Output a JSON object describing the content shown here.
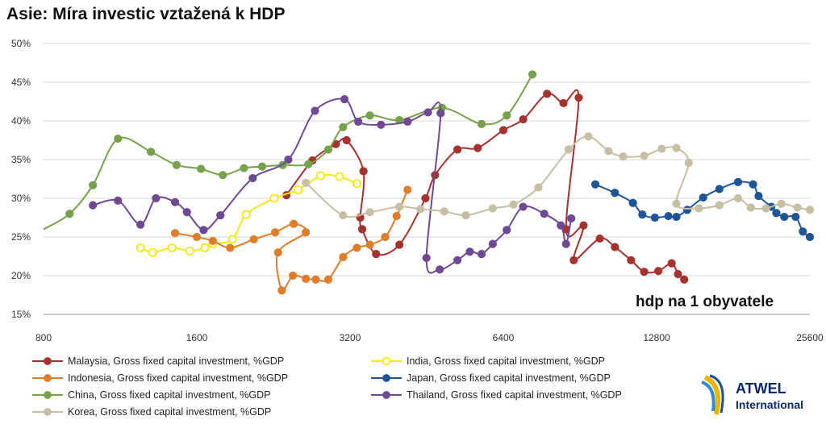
{
  "chart_data": {
    "type": "line",
    "title": "Asie: Míra investic vztažená k HDP",
    "annotation": "hdp na 1 obyvatele",
    "x_scale": "log2",
    "xlim": [
      800,
      25600
    ],
    "ylim": [
      15,
      50
    ],
    "x_ticks": [
      "800",
      "1600",
      "3200",
      "6400",
      "12800",
      "25600"
    ],
    "x_tick_values": [
      800,
      1600,
      3200,
      6400,
      12800,
      25600
    ],
    "y_ticks": [
      "15%",
      "20%",
      "25%",
      "30%",
      "35%",
      "40%",
      "45%",
      "50%"
    ],
    "y_tick_values": [
      15,
      20,
      25,
      30,
      35,
      40,
      45,
      50
    ],
    "grid": "horizontal",
    "legend_position": "bottom",
    "series": [
      {
        "name": "Malaysia, Gross fixed capital investment, %GDP",
        "color": "#a5322f",
        "points": [
          [
            2400,
            30.4
          ],
          [
            2700,
            34.9
          ],
          [
            3000,
            37.0
          ],
          [
            3150,
            37.5
          ],
          [
            3400,
            33.5
          ],
          [
            3350,
            27.5
          ],
          [
            3380,
            26.0
          ],
          [
            3600,
            22.8
          ],
          [
            4000,
            24.0
          ],
          [
            4500,
            30.0
          ],
          [
            4700,
            33.0
          ],
          [
            5200,
            36.3
          ],
          [
            5700,
            36.5
          ],
          [
            6400,
            38.8
          ],
          [
            7000,
            40.2
          ],
          [
            7800,
            43.5
          ],
          [
            8400,
            42.3
          ],
          [
            9000,
            43.0
          ],
          [
            8500,
            26.0
          ],
          [
            9200,
            26.5
          ],
          [
            8800,
            22.0
          ],
          [
            9900,
            24.8
          ],
          [
            10600,
            23.7
          ],
          [
            11400,
            22.0
          ],
          [
            12100,
            20.5
          ],
          [
            12900,
            20.6
          ],
          [
            13700,
            21.6
          ],
          [
            14100,
            20.2
          ],
          [
            14500,
            19.5
          ]
        ]
      },
      {
        "name": "India, Gross fixed capital investment, %GDP",
        "color": "#f4e81a",
        "points": [
          [
            1240,
            23.6
          ],
          [
            1310,
            23.0
          ],
          [
            1430,
            23.6
          ],
          [
            1550,
            23.2
          ],
          [
            1660,
            23.6
          ],
          [
            1720,
            24.1
          ],
          [
            1880,
            24.7
          ],
          [
            2000,
            27.9
          ],
          [
            2270,
            30.0
          ],
          [
            2530,
            31.1
          ],
          [
            2800,
            32.9
          ],
          [
            3050,
            32.8
          ],
          [
            3300,
            31.9
          ]
        ]
      },
      {
        "name": "Indonesia, Gross fixed capital investment, %GDP",
        "color": "#e07d2b",
        "points": [
          [
            1450,
            25.5
          ],
          [
            1600,
            25.0
          ],
          [
            1720,
            24.5
          ],
          [
            1860,
            23.6
          ],
          [
            2070,
            24.7
          ],
          [
            2280,
            25.6
          ],
          [
            2480,
            26.7
          ],
          [
            2620,
            25.6
          ],
          [
            2310,
            23.0
          ],
          [
            2350,
            18.1
          ],
          [
            2470,
            20.0
          ],
          [
            2620,
            19.6
          ],
          [
            2740,
            19.5
          ],
          [
            2900,
            19.5
          ],
          [
            3100,
            22.4
          ],
          [
            3300,
            23.6
          ],
          [
            3500,
            24.0
          ],
          [
            3750,
            25.0
          ],
          [
            3950,
            27.7
          ],
          [
            4150,
            31.1
          ]
        ]
      },
      {
        "name": "Japan, Gross fixed capital investment, %GDP",
        "color": "#1f5596",
        "points": [
          [
            9700,
            31.8
          ],
          [
            10600,
            30.7
          ],
          [
            11500,
            29.4
          ],
          [
            12000,
            27.9
          ],
          [
            12700,
            27.5
          ],
          [
            13500,
            27.7
          ],
          [
            14000,
            27.6
          ],
          [
            14700,
            28.5
          ],
          [
            15800,
            30.1
          ],
          [
            17000,
            31.2
          ],
          [
            18500,
            32.1
          ],
          [
            19800,
            31.8
          ],
          [
            20300,
            30.3
          ],
          [
            21500,
            28.9
          ],
          [
            22000,
            28.1
          ],
          [
            22800,
            27.6
          ],
          [
            24000,
            27.6
          ],
          [
            24800,
            25.7
          ],
          [
            25600,
            25.0
          ]
        ]
      },
      {
        "name": "China, Gross fixed capital investment, %GDP",
        "color": "#77a14a",
        "points": [
          [
            800,
            26.0
          ],
          [
            900,
            28.0
          ],
          [
            1000,
            31.7
          ],
          [
            1120,
            37.7
          ],
          [
            1300,
            36.0
          ],
          [
            1460,
            34.3
          ],
          [
            1630,
            33.8
          ],
          [
            1800,
            33.0
          ],
          [
            1980,
            33.9
          ],
          [
            2150,
            34.1
          ],
          [
            2360,
            34.3
          ],
          [
            2650,
            34.4
          ],
          [
            2900,
            36.3
          ],
          [
            3100,
            39.2
          ],
          [
            3500,
            40.7
          ],
          [
            4000,
            40.1
          ],
          [
            4850,
            41.7
          ],
          [
            5800,
            39.6
          ],
          [
            6500,
            40.7
          ],
          [
            7300,
            46.0
          ]
        ]
      },
      {
        "name": "Thailand, Gross fixed capital investment, %GDP",
        "color": "#6e4a92",
        "points": [
          [
            1000,
            29.1
          ],
          [
            1120,
            29.7
          ],
          [
            1240,
            26.6
          ],
          [
            1330,
            30.0
          ],
          [
            1450,
            29.5
          ],
          [
            1530,
            28.2
          ],
          [
            1650,
            25.9
          ],
          [
            1780,
            27.8
          ],
          [
            2060,
            32.6
          ],
          [
            2420,
            35.0
          ],
          [
            2730,
            41.3
          ],
          [
            3120,
            42.8
          ],
          [
            3320,
            39.9
          ],
          [
            3680,
            39.5
          ],
          [
            4150,
            39.9
          ],
          [
            4550,
            41.1
          ],
          [
            4820,
            41.0
          ],
          [
            4520,
            22.3
          ],
          [
            4800,
            20.8
          ],
          [
            5200,
            22.0
          ],
          [
            5500,
            23.1
          ],
          [
            5800,
            22.8
          ],
          [
            6100,
            24.1
          ],
          [
            6500,
            25.9
          ],
          [
            7000,
            28.9
          ],
          [
            7700,
            28.0
          ],
          [
            8300,
            26.5
          ],
          [
            8500,
            24.1
          ],
          [
            8700,
            27.4
          ]
        ]
      },
      {
        "name": "Korea, Gross fixed capital investment, %GDP",
        "color": "#c7bfa3",
        "points": [
          [
            2620,
            32.0
          ],
          [
            3100,
            27.8
          ],
          [
            3500,
            28.2
          ],
          [
            4000,
            28.9
          ],
          [
            4400,
            28.6
          ],
          [
            4900,
            28.3
          ],
          [
            5400,
            27.8
          ],
          [
            6100,
            28.7
          ],
          [
            6700,
            29.2
          ],
          [
            7500,
            31.4
          ],
          [
            8600,
            36.3
          ],
          [
            9400,
            38.0
          ],
          [
            10300,
            36.1
          ],
          [
            11000,
            35.4
          ],
          [
            12100,
            35.5
          ],
          [
            13100,
            36.4
          ],
          [
            14000,
            36.5
          ],
          [
            14800,
            34.6
          ],
          [
            14000,
            29.3
          ],
          [
            15500,
            28.7
          ],
          [
            17000,
            29.1
          ],
          [
            18500,
            30.0
          ],
          [
            19600,
            28.8
          ],
          [
            21000,
            28.7
          ],
          [
            22500,
            29.3
          ],
          [
            24200,
            28.8
          ],
          [
            25600,
            28.5
          ]
        ]
      }
    ]
  },
  "logo": {
    "line1": "ATWEL",
    "line2": "International"
  }
}
